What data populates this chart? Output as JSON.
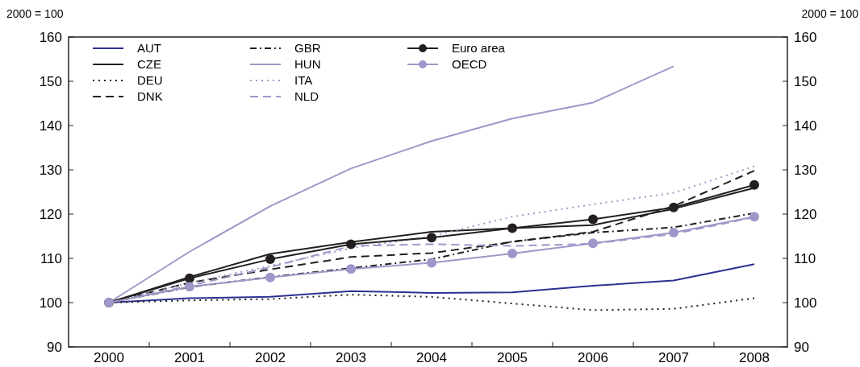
{
  "chart_data": {
    "type": "line",
    "ylabel": "2000 = 100",
    "y2label": "2000 = 100",
    "categories": [
      "2000",
      "2001",
      "2002",
      "2003",
      "2004",
      "2005",
      "2006",
      "2007",
      "2008"
    ],
    "ylim": [
      90,
      160
    ],
    "yticks": [
      90,
      100,
      110,
      120,
      130,
      140,
      150,
      160
    ],
    "y2lim": [
      90,
      160
    ],
    "y2ticks": [
      90,
      100,
      110,
      120,
      130,
      140,
      150,
      160
    ],
    "legend": "top left",
    "grid": false,
    "series": [
      {
        "name": "AUT",
        "color": "#2e3192",
        "line_style": "solid",
        "marker": "none",
        "values": [
          100,
          101,
          101.3,
          102.6,
          102.2,
          102.3,
          103.8,
          105,
          108.7
        ]
      },
      {
        "name": "CZE",
        "color": "#231f20",
        "line_style": "solid",
        "marker": "none",
        "values": [
          100,
          105.8,
          111,
          113.7,
          116,
          116.8,
          117.5,
          121.2,
          125.9
        ]
      },
      {
        "name": "DEU",
        "color": "#231f20",
        "line_style": "dotted",
        "marker": "none",
        "values": [
          100,
          100.5,
          100.8,
          101.8,
          101.3,
          99.8,
          98.3,
          98.6,
          101
        ]
      },
      {
        "name": "DNK",
        "color": "#231f20",
        "line_style": "dashed",
        "marker": "none",
        "values": [
          100,
          104.5,
          107.5,
          110.3,
          111.2,
          113.7,
          116,
          121.8,
          129.8
        ]
      },
      {
        "name": "GBR",
        "color": "#231f20",
        "line_style": "dashdot",
        "marker": "none",
        "values": [
          100,
          103.5,
          105.8,
          107.8,
          109.8,
          113.8,
          115.8,
          117,
          120.2
        ]
      },
      {
        "name": "HUN",
        "color": "#9d98c9",
        "line_style": "solid",
        "marker": "none",
        "values": [
          100,
          111.5,
          121.8,
          130.3,
          136.5,
          141.6,
          145.2,
          153.4,
          null
        ]
      },
      {
        "name": "ITA",
        "color": "#9d98c9",
        "line_style": "dotted",
        "marker": "none",
        "values": [
          100,
          104.5,
          108.3,
          112.3,
          115,
          119.4,
          122.2,
          124.8,
          130.8
        ]
      },
      {
        "name": "NLD",
        "color": "#9d98c9",
        "line_style": "dashed",
        "marker": "none",
        "values": [
          100,
          103.8,
          108,
          112.8,
          113.2,
          112.8,
          113.3,
          115.5,
          119.3
        ]
      },
      {
        "name": "Euro area",
        "color": "#231f20",
        "line_style": "solid",
        "marker": "circle",
        "values": [
          100,
          105.5,
          109.8,
          113.2,
          114.7,
          116.8,
          118.8,
          121.5,
          126.6
        ]
      },
      {
        "name": "OECD",
        "color": "#9d98c9",
        "line_style": "solid",
        "marker": "circle",
        "values": [
          100,
          103.6,
          105.7,
          107.6,
          109,
          111.1,
          113.4,
          115.8,
          119.4
        ]
      }
    ]
  }
}
